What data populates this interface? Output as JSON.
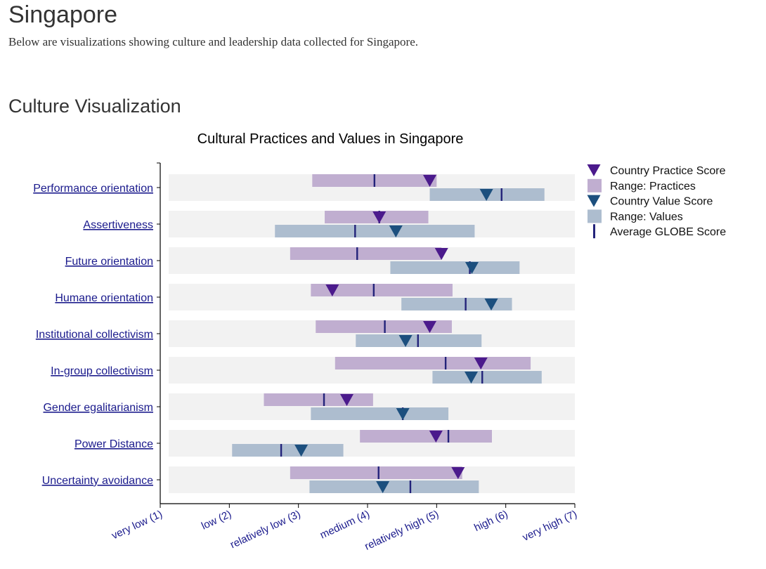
{
  "page": {
    "title": "Singapore",
    "subtitle": "Below are visualizations showing culture and leadership data collected for Singapore.",
    "section_heading": "Culture Visualization"
  },
  "colors": {
    "practice_range": "#c0aed0",
    "value_range": "#adbdcf",
    "practice_marker": "#4b1a8c",
    "value_marker": "#1c4f7e",
    "average_mark": "#23237a",
    "row_background": "#f2f2f2",
    "link": "#1a1a8c"
  },
  "chart_data": {
    "type": "range-marker",
    "title": "Cultural Practices and Values in Singapore",
    "x_range": [
      1,
      7
    ],
    "x_ticks": [
      "very low (1)",
      "low (2)",
      "relatively low (3)",
      "medium (4)",
      "relatively high (5)",
      "high (6)",
      "very high (7)"
    ],
    "legend": {
      "position": "right",
      "items": [
        {
          "key": "practice_score",
          "label": "Country Practice Score"
        },
        {
          "key": "practice_range",
          "label": "Range: Practices"
        },
        {
          "key": "value_score",
          "label": "Country Value Score"
        },
        {
          "key": "value_range",
          "label": "Range: Values"
        },
        {
          "key": "average",
          "label": "Average GLOBE Score"
        }
      ]
    },
    "dimensions": [
      {
        "name": "Performance orientation",
        "practices": {
          "min": 3.2,
          "max": 5.0,
          "avg": 4.1,
          "score": 4.9
        },
        "values": {
          "min": 4.9,
          "max": 6.56,
          "avg": 5.94,
          "score": 5.72
        }
      },
      {
        "name": "Assertiveness",
        "practices": {
          "min": 3.38,
          "max": 4.88,
          "avg": 4.17,
          "score": 4.17
        },
        "values": {
          "min": 2.66,
          "max": 5.55,
          "avg": 3.82,
          "score": 4.41
        }
      },
      {
        "name": "Future orientation",
        "practices": {
          "min": 2.88,
          "max": 5.07,
          "avg": 3.85,
          "score": 5.07
        },
        "values": {
          "min": 4.33,
          "max": 6.2,
          "avg": 5.48,
          "score": 5.51
        }
      },
      {
        "name": "Humane orientation",
        "practices": {
          "min": 3.18,
          "max": 5.23,
          "avg": 4.09,
          "score": 3.49
        },
        "values": {
          "min": 4.49,
          "max": 6.09,
          "avg": 5.42,
          "score": 5.79
        }
      },
      {
        "name": "Institutional collectivism",
        "practices": {
          "min": 3.25,
          "max": 5.22,
          "avg": 4.25,
          "score": 4.9
        },
        "values": {
          "min": 3.83,
          "max": 5.65,
          "avg": 4.73,
          "score": 4.55
        }
      },
      {
        "name": "In-group collectivism",
        "practices": {
          "min": 3.53,
          "max": 6.36,
          "avg": 5.13,
          "score": 5.64
        },
        "values": {
          "min": 4.94,
          "max": 6.52,
          "avg": 5.66,
          "score": 5.5
        }
      },
      {
        "name": "Gender egalitarianism",
        "practices": {
          "min": 2.5,
          "max": 4.08,
          "avg": 3.37,
          "score": 3.7
        },
        "values": {
          "min": 3.18,
          "max": 5.17,
          "avg": 4.51,
          "score": 4.51
        }
      },
      {
        "name": "Power Distance",
        "practices": {
          "min": 3.89,
          "max": 5.8,
          "avg": 5.17,
          "score": 4.99
        },
        "values": {
          "min": 2.04,
          "max": 3.65,
          "avg": 2.75,
          "score": 3.04
        }
      },
      {
        "name": "Uncertainty avoidance",
        "practices": {
          "min": 2.88,
          "max": 5.37,
          "avg": 4.16,
          "score": 5.31
        },
        "values": {
          "min": 3.16,
          "max": 5.61,
          "avg": 4.62,
          "score": 4.22
        }
      }
    ]
  }
}
